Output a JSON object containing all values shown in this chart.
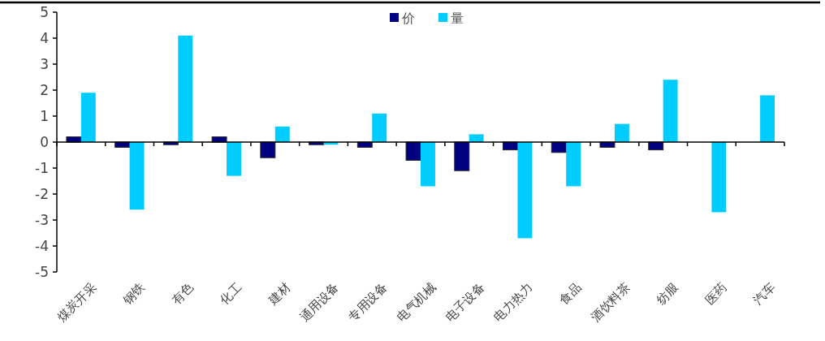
{
  "chart_data": {
    "type": "bar",
    "categories": [
      "煤炭开采",
      "钢铁",
      "有色",
      "化工",
      "建材",
      "通用设备",
      "专用设备",
      "电气机械",
      "电子设备",
      "电力热力",
      "食品",
      "酒饮料茶",
      "纺服",
      "医药",
      "汽车"
    ],
    "series": [
      {
        "name": "价",
        "color": "#000080",
        "values": [
          0.2,
          -0.2,
          -0.1,
          0.2,
          -0.6,
          -0.1,
          -0.2,
          -0.7,
          -1.1,
          -0.3,
          -0.4,
          -0.2,
          -0.3,
          null,
          null
        ]
      },
      {
        "name": "量",
        "color": "#00ccff",
        "values": [
          1.9,
          -2.6,
          4.1,
          -1.3,
          0.6,
          -0.1,
          1.1,
          -1.7,
          0.3,
          -3.7,
          -1.7,
          0.7,
          2.4,
          -2.7,
          1.8
        ]
      }
    ],
    "ylim": [
      -5,
      5
    ],
    "yticks": [
      -5,
      -4,
      -3,
      -2,
      -1,
      0,
      1,
      2,
      3,
      4,
      5
    ],
    "legend": "top"
  }
}
